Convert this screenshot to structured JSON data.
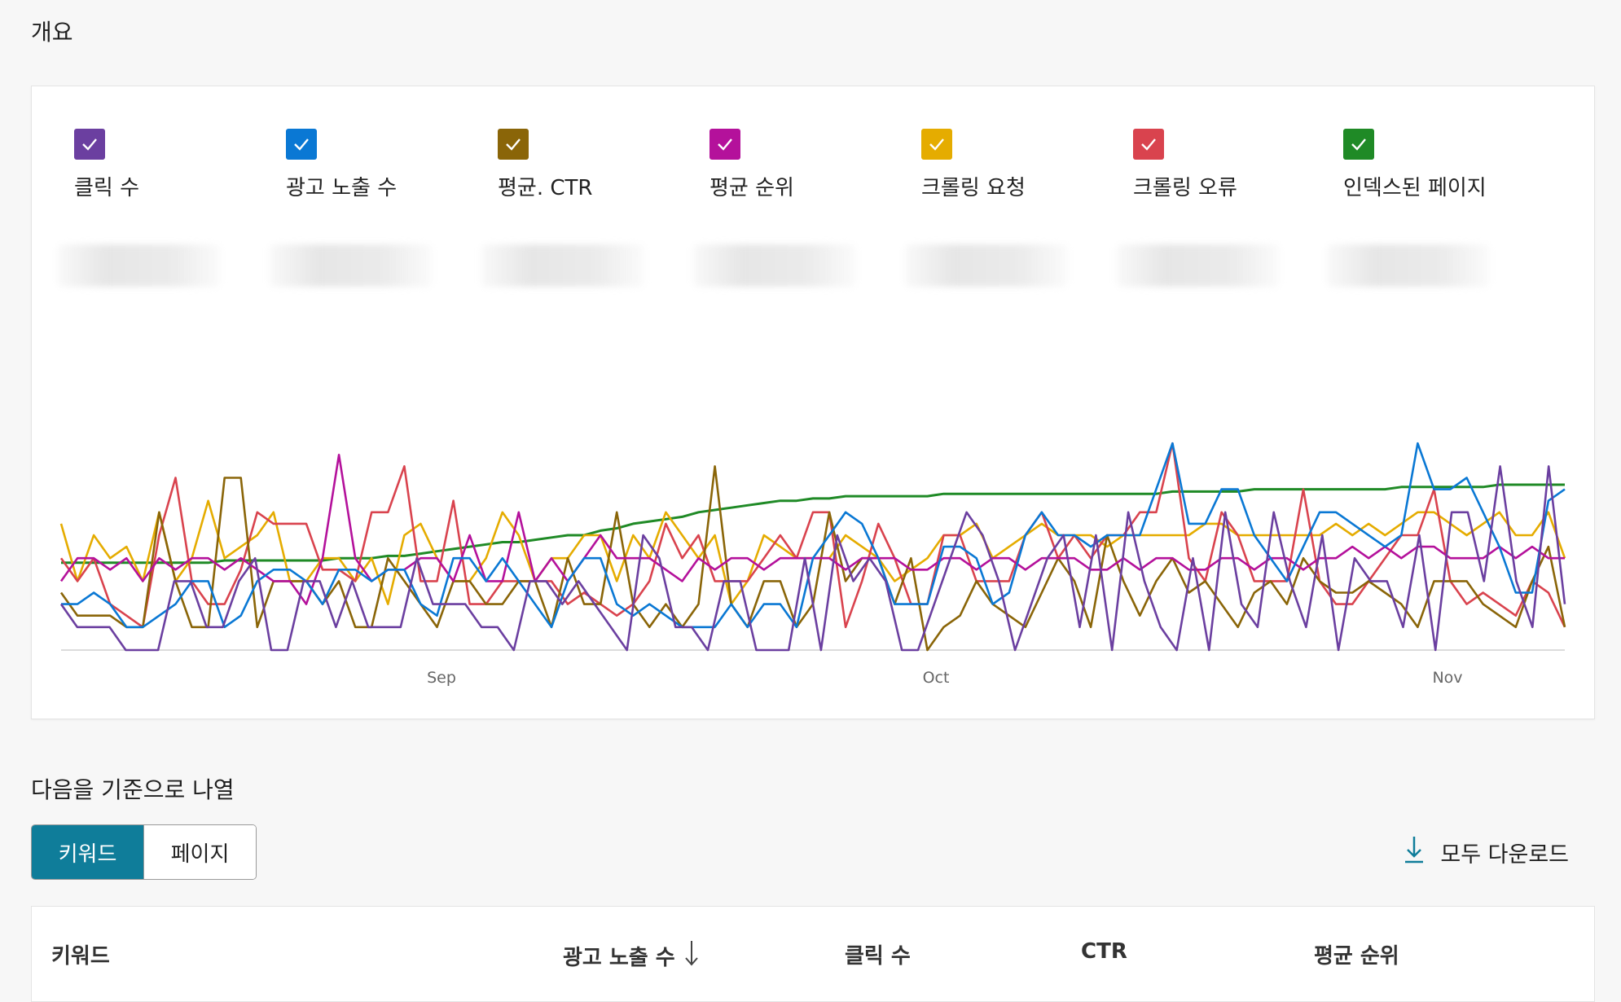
{
  "overview": {
    "title": "개요"
  },
  "metrics": [
    {
      "label": "클릭 수",
      "color": "#6b3fa0",
      "check_icon": "check-icon"
    },
    {
      "label": "광고 노출 수",
      "color": "#0a78d4",
      "check_icon": "check-icon"
    },
    {
      "label": "평균. CTR",
      "color": "#8a6508",
      "check_icon": "check-icon"
    },
    {
      "label": "평균 순위",
      "color": "#b4119b",
      "check_icon": "check-icon"
    },
    {
      "label": "크롤링 요청",
      "color": "#e5ac00",
      "check_icon": "check-icon"
    },
    {
      "label": "크롤링 오류",
      "color": "#d9434e",
      "check_icon": "check-icon"
    },
    {
      "label": "인덱스된 페이지",
      "color": "#1f8a26",
      "check_icon": "check-icon"
    }
  ],
  "chart_data": {
    "type": "line",
    "x_ticks": [
      "Sep",
      "Oct",
      "Nov"
    ],
    "grid": false,
    "legend": "top",
    "series": [
      {
        "name": "클릭 수",
        "color": "#6b3fa0",
        "values": [
          0.2,
          0.1,
          0.1,
          0.1,
          0,
          0,
          0,
          0.3,
          0.3,
          0.1,
          0.1,
          0.3,
          0.4,
          0,
          0,
          0.3,
          0.3,
          0.1,
          0.3,
          0.1,
          0.1,
          0.1,
          0.4,
          0.2,
          0.2,
          0.2,
          0.1,
          0.1,
          0,
          0.3,
          0.3,
          0.2,
          0.3,
          0.2,
          0.1,
          0,
          0.5,
          0.4,
          0.1,
          0.1,
          0,
          0.3,
          0.3,
          0,
          0,
          0,
          0.4,
          0,
          0.5,
          0.3,
          0.4,
          0.3,
          0,
          0,
          0.2,
          0.4,
          0.6,
          0.5,
          0.3,
          0,
          0.2,
          0.4,
          0.5,
          0.1,
          0.5,
          0,
          0.6,
          0.3,
          0.1,
          0,
          0.4,
          0,
          0.6,
          0.2,
          0.1,
          0.6,
          0.3,
          0.1,
          0.5,
          0,
          0.4,
          0.3,
          0.3,
          0.1,
          0.5,
          0,
          0.6,
          0.6,
          0.3,
          0.8,
          0.3,
          0.1,
          0.8,
          0.2
        ]
      },
      {
        "name": "광고 노출 수",
        "color": "#0a78d4",
        "values": [
          0.2,
          0.2,
          0.25,
          0.2,
          0.1,
          0.1,
          0.15,
          0.2,
          0.3,
          0.3,
          0.1,
          0.15,
          0.3,
          0.35,
          0.35,
          0.3,
          0.2,
          0.35,
          0.35,
          0.3,
          0.35,
          0.35,
          0.2,
          0.15,
          0.4,
          0.4,
          0.3,
          0.4,
          0.3,
          0.2,
          0.1,
          0.3,
          0.4,
          0.4,
          0.2,
          0.15,
          0.2,
          0.15,
          0.1,
          0.1,
          0.1,
          0.2,
          0.1,
          0.2,
          0.2,
          0.1,
          0.4,
          0.5,
          0.6,
          0.55,
          0.4,
          0.2,
          0.2,
          0.2,
          0.45,
          0.45,
          0.4,
          0.2,
          0.25,
          0.5,
          0.6,
          0.5,
          0.5,
          0.45,
          0.5,
          0.5,
          0.5,
          0.7,
          0.9,
          0.55,
          0.55,
          0.7,
          0.7,
          0.5,
          0.4,
          0.3,
          0.45,
          0.6,
          0.6,
          0.55,
          0.5,
          0.45,
          0.5,
          0.9,
          0.7,
          0.7,
          0.75,
          0.6,
          0.45,
          0.25,
          0.25,
          0.65,
          0.7
        ]
      },
      {
        "name": "평균. CTR",
        "color": "#8a6508",
        "values": [
          0.25,
          0.15,
          0.15,
          0.15,
          0.1,
          0.1,
          0.6,
          0.3,
          0.1,
          0.1,
          0.75,
          0.75,
          0.1,
          0.3,
          0.3,
          0.3,
          0.2,
          0.3,
          0.1,
          0.1,
          0.4,
          0.3,
          0.2,
          0.1,
          0.3,
          0.3,
          0.2,
          0.2,
          0.3,
          0.3,
          0.1,
          0.4,
          0.2,
          0.2,
          0.6,
          0.2,
          0.1,
          0.2,
          0.1,
          0.2,
          0.8,
          0.2,
          0.1,
          0.3,
          0.3,
          0.1,
          0.2,
          0.6,
          0.3,
          0.4,
          0.4,
          0.2,
          0.4,
          0,
          0.1,
          0.15,
          0.3,
          0.2,
          0.15,
          0.1,
          0.25,
          0.4,
          0.3,
          0.1,
          0.5,
          0.3,
          0.15,
          0.3,
          0.4,
          0.25,
          0.3,
          0.2,
          0.1,
          0.25,
          0.3,
          0.2,
          0.4,
          0.3,
          0.25,
          0.25,
          0.3,
          0.25,
          0.2,
          0.1,
          0.3,
          0.3,
          0.3,
          0.2,
          0.15,
          0.1,
          0.3,
          0.45,
          0.1
        ]
      },
      {
        "name": "평균 순위",
        "color": "#b4119b",
        "values": [
          0.3,
          0.4,
          0.4,
          0.35,
          0.4,
          0.3,
          0.4,
          0.35,
          0.4,
          0.4,
          0.35,
          0.4,
          0.35,
          0.3,
          0.3,
          0.2,
          0.4,
          0.85,
          0.4,
          0.3,
          0.35,
          0.35,
          0.4,
          0.4,
          0.3,
          0.5,
          0.3,
          0.3,
          0.6,
          0.3,
          0.4,
          0.3,
          0.4,
          0.5,
          0.4,
          0.4,
          0.4,
          0.35,
          0.3,
          0.4,
          0.35,
          0.4,
          0.4,
          0.35,
          0.4,
          0.4,
          0.4,
          0.4,
          0.35,
          0.4,
          0.4,
          0.4,
          0.35,
          0.35,
          0.4,
          0.4,
          0.35,
          0.4,
          0.4,
          0.35,
          0.4,
          0.4,
          0.4,
          0.35,
          0.35,
          0.4,
          0.35,
          0.4,
          0.4,
          0.35,
          0.35,
          0.4,
          0.4,
          0.35,
          0.4,
          0.4,
          0.35,
          0.4,
          0.4,
          0.45,
          0.4,
          0.45,
          0.4,
          0.45,
          0.45,
          0.4,
          0.4,
          0.4,
          0.45,
          0.4,
          0.45,
          0.4,
          0.4
        ]
      },
      {
        "name": "크롤링 요청",
        "color": "#e5ac00",
        "values": [
          0.55,
          0.3,
          0.5,
          0.4,
          0.45,
          0.3,
          0.6,
          0.3,
          0.4,
          0.65,
          0.4,
          0.45,
          0.5,
          0.6,
          0.3,
          0.3,
          0.4,
          0.4,
          0.3,
          0.4,
          0.2,
          0.5,
          0.55,
          0.4,
          0.3,
          0.3,
          0.4,
          0.6,
          0.5,
          0.3,
          0.4,
          0.4,
          0.5,
          0.5,
          0.3,
          0.5,
          0.4,
          0.6,
          0.5,
          0.4,
          0.5,
          0.2,
          0.3,
          0.5,
          0.45,
          0.4,
          0.4,
          0.4,
          0.5,
          0.45,
          0.4,
          0.3,
          0.35,
          0.4,
          0.5,
          0.5,
          0.55,
          0.4,
          0.45,
          0.5,
          0.55,
          0.5,
          0.5,
          0.5,
          0.45,
          0.5,
          0.5,
          0.5,
          0.5,
          0.5,
          0.55,
          0.55,
          0.5,
          0.5,
          0.5,
          0.5,
          0.5,
          0.5,
          0.55,
          0.5,
          0.55,
          0.5,
          0.55,
          0.6,
          0.6,
          0.55,
          0.5,
          0.55,
          0.6,
          0.5,
          0.5,
          0.6,
          0.4
        ]
      },
      {
        "name": "크롤링 오류",
        "color": "#d9434e",
        "values": [
          0.4,
          0.3,
          0.4,
          0.2,
          0.15,
          0.1,
          0.5,
          0.75,
          0.3,
          0.2,
          0.2,
          0.35,
          0.6,
          0.55,
          0.55,
          0.55,
          0.35,
          0.35,
          0.3,
          0.6,
          0.6,
          0.8,
          0.3,
          0.3,
          0.65,
          0.2,
          0.2,
          0.3,
          0.3,
          0.3,
          0.3,
          0.2,
          0.25,
          0.2,
          0.15,
          0.2,
          0.3,
          0.55,
          0.4,
          0.5,
          0.3,
          0.3,
          0.3,
          0.4,
          0.5,
          0.4,
          0.6,
          0.6,
          0.1,
          0.3,
          0.55,
          0.4,
          0.2,
          0.2,
          0.5,
          0.5,
          0.3,
          0.3,
          0.3,
          0.5,
          0.6,
          0.4,
          0.5,
          0.4,
          0.5,
          0.5,
          0.6,
          0.6,
          0.9,
          0.4,
          0.3,
          0.6,
          0.5,
          0.3,
          0.3,
          0.3,
          0.7,
          0.3,
          0.2,
          0.2,
          0.3,
          0.4,
          0.5,
          0.5,
          0.7,
          0.3,
          0.2,
          0.25,
          0.2,
          0.15,
          0.3,
          0.25,
          0.1
        ]
      },
      {
        "name": "인덱스된 페이지",
        "color": "#1f8a26",
        "values": [
          0.38,
          0.38,
          0.38,
          0.38,
          0.38,
          0.38,
          0.38,
          0.38,
          0.38,
          0.38,
          0.39,
          0.39,
          0.39,
          0.39,
          0.39,
          0.39,
          0.39,
          0.4,
          0.4,
          0.4,
          0.41,
          0.41,
          0.42,
          0.43,
          0.44,
          0.45,
          0.46,
          0.47,
          0.47,
          0.48,
          0.49,
          0.5,
          0.5,
          0.52,
          0.53,
          0.55,
          0.56,
          0.57,
          0.58,
          0.6,
          0.61,
          0.62,
          0.63,
          0.64,
          0.65,
          0.65,
          0.66,
          0.66,
          0.67,
          0.67,
          0.67,
          0.67,
          0.67,
          0.67,
          0.68,
          0.68,
          0.68,
          0.68,
          0.68,
          0.68,
          0.68,
          0.68,
          0.68,
          0.68,
          0.68,
          0.68,
          0.68,
          0.68,
          0.69,
          0.69,
          0.69,
          0.69,
          0.69,
          0.7,
          0.7,
          0.7,
          0.7,
          0.7,
          0.7,
          0.7,
          0.7,
          0.7,
          0.71,
          0.71,
          0.71,
          0.71,
          0.71,
          0.71,
          0.72,
          0.72,
          0.72,
          0.72,
          0.72
        ]
      }
    ]
  },
  "sort": {
    "title": "다음을 기준으로 나열",
    "options": [
      {
        "label": "키워드",
        "active": true
      },
      {
        "label": "페이지",
        "active": false
      }
    ]
  },
  "download": {
    "label": "모두 다운로드",
    "icon": "download-icon"
  },
  "table": {
    "headers": [
      {
        "label": "키워드"
      },
      {
        "label": "광고 노출 수",
        "sort_icon": "arrow-down-icon"
      },
      {
        "label": "클릭 수"
      },
      {
        "label": "CTR"
      },
      {
        "label": "평균 순위"
      }
    ]
  }
}
